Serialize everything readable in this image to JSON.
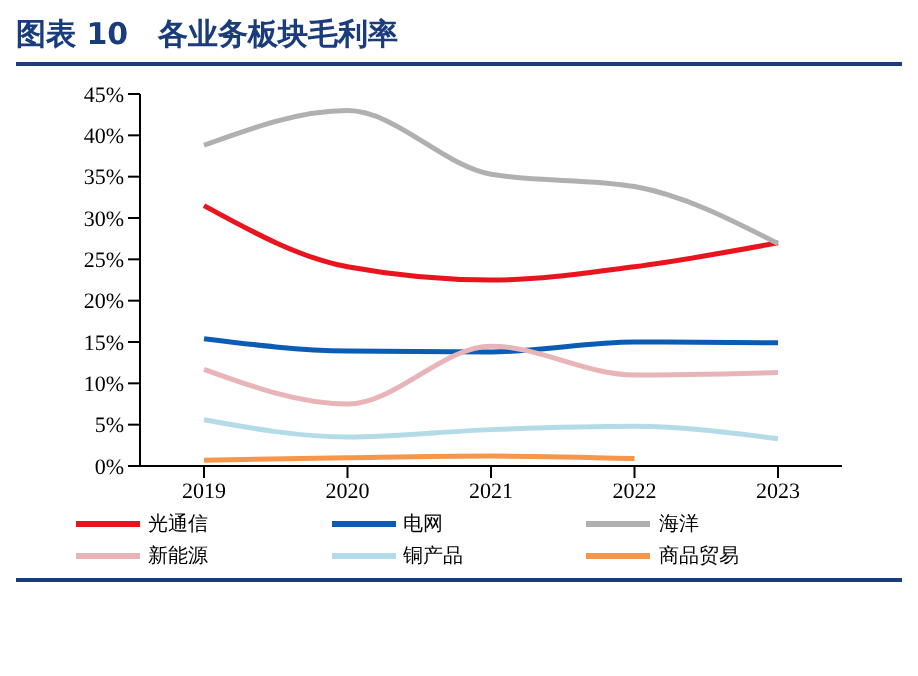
{
  "chart_data": {
    "type": "line",
    "title": "图表 10　各业务板块毛利率",
    "categories": [
      "2019",
      "2020",
      "2021",
      "2022",
      "2023"
    ],
    "series": [
      {
        "name": "光通信",
        "color": "#e8141e",
        "values": [
          31.5,
          24.1,
          22.5,
          24.1,
          27.0
        ]
      },
      {
        "name": "电网",
        "color": "#0a5cb4",
        "values": [
          15.4,
          13.9,
          13.8,
          15.0,
          14.9
        ]
      },
      {
        "name": "海洋",
        "color": "#b0b0b0",
        "values": [
          38.8,
          43.0,
          35.3,
          33.8,
          26.9
        ]
      },
      {
        "name": "新能源",
        "color": "#e8b4b8",
        "values": [
          11.7,
          7.5,
          14.5,
          11.0,
          11.3
        ]
      },
      {
        "name": "铜产品",
        "color": "#b4dce8",
        "values": [
          5.6,
          3.5,
          4.4,
          4.8,
          3.3
        ]
      },
      {
        "name": "商品贸易",
        "color": "#f5964b",
        "values": [
          0.7,
          1.0,
          1.2,
          0.9,
          null
        ]
      }
    ],
    "ylim": [
      0,
      45
    ],
    "yticks": [
      {
        "value": 0,
        "label": "0%"
      },
      {
        "value": 5,
        "label": "5%"
      },
      {
        "value": 10,
        "label": "10%"
      },
      {
        "value": 15,
        "label": "15%"
      },
      {
        "value": 20,
        "label": "20%"
      },
      {
        "value": 25,
        "label": "25%"
      },
      {
        "value": 30,
        "label": "30%"
      },
      {
        "value": 35,
        "label": "35%"
      },
      {
        "value": 40,
        "label": "40%"
      },
      {
        "value": 45,
        "label": "45%"
      }
    ],
    "grid": false,
    "legend": "bottom",
    "marker": "none",
    "line_style": "solid"
  }
}
